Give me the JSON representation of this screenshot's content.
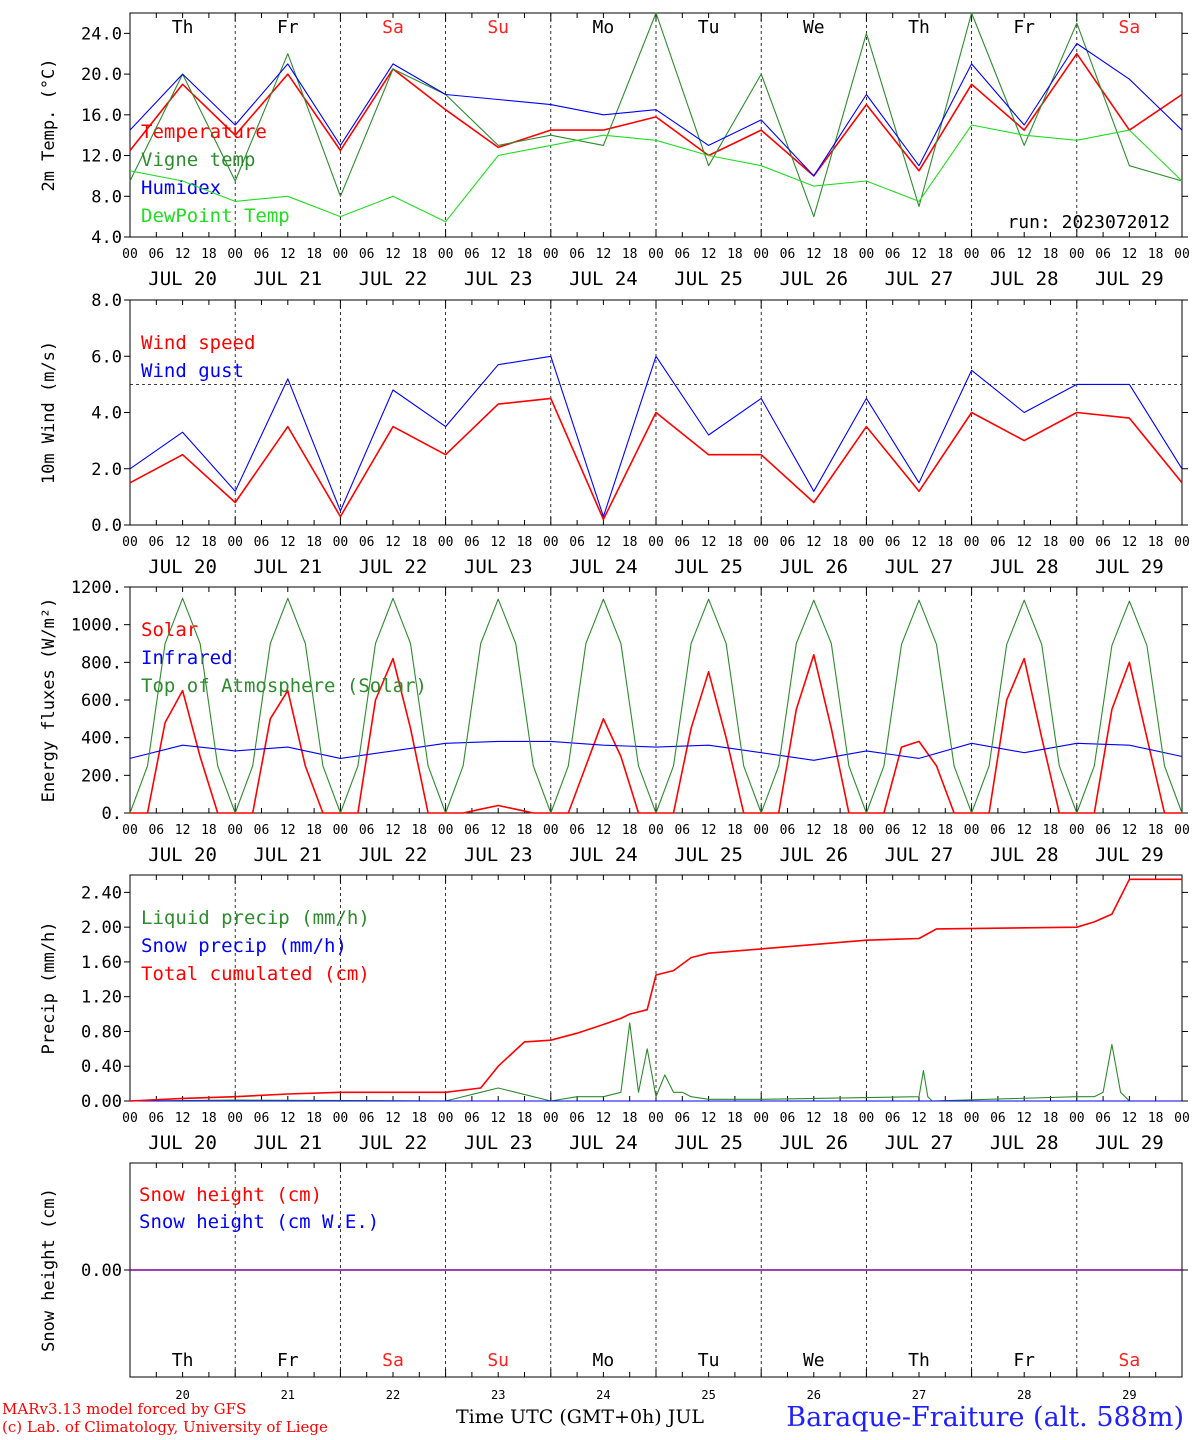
{
  "days": [
    "Th",
    "Fr",
    "Sa",
    "Su",
    "Mo",
    "Tu",
    "We",
    "Th",
    "Fr",
    "Sa"
  ],
  "weekend_color": "#ff2020",
  "date_labels": [
    "JUL 20",
    "JUL 21",
    "JUL 22",
    "JUL 23",
    "JUL 24",
    "JUL 25",
    "JUL 26",
    "JUL 27",
    "JUL 28",
    "JUL 29"
  ],
  "day_numbers": [
    "20",
    "21",
    "22",
    "23",
    "24",
    "25",
    "26",
    "27",
    "28",
    "29"
  ],
  "hour_labels": [
    "00",
    "06",
    "12",
    "18"
  ],
  "run_label": "run: 2023072012",
  "footer": {
    "model": "MARv3.13 model forced by GFS",
    "credit": "(c) Lab. of Climatology, University of Liege",
    "time_axis": "Time UTC (GMT+0h) JUL",
    "station": "Baraque-Fraiture (alt. 588m)"
  },
  "chart_data": [
    {
      "type": "line",
      "ylabel": "2m Temp. (°C)",
      "ylim": [
        4,
        26
      ],
      "yticks": [
        "4.0",
        "8.0",
        "12.0",
        "16.0",
        "20.0",
        "24.0"
      ],
      "yticks_values": [
        4,
        8,
        12,
        16,
        20,
        24
      ],
      "xlim_hours": [
        0,
        240
      ],
      "series": [
        {
          "name": "Temperature",
          "color": "#ff0000",
          "x": [
            0,
            12,
            24,
            36,
            48,
            60,
            72,
            84,
            96,
            108,
            120,
            132,
            144,
            156,
            168,
            180,
            192,
            204,
            216,
            228,
            240
          ],
          "values": [
            12.5,
            19,
            14,
            20,
            12.5,
            20.5,
            16.5,
            12.8,
            14.5,
            14.5,
            15.8,
            12,
            14.5,
            10,
            17,
            10.5,
            19,
            14.5,
            22,
            14.5,
            18
          ]
        },
        {
          "name": "Vigne temp",
          "color": "#2e8b2e",
          "x": [
            0,
            12,
            24,
            36,
            48,
            60,
            72,
            84,
            96,
            108,
            120,
            132,
            144,
            156,
            168,
            180,
            192,
            204,
            216,
            228,
            240
          ],
          "values": [
            9.5,
            20,
            9.5,
            22,
            8,
            20.5,
            18,
            13,
            14,
            13,
            26,
            11,
            20,
            6,
            24,
            7,
            26,
            13,
            25,
            11,
            9.5
          ]
        },
        {
          "name": "Humidex",
          "color": "#0000ff",
          "x": [
            0,
            12,
            24,
            36,
            48,
            60,
            72,
            84,
            96,
            108,
            120,
            132,
            144,
            156,
            168,
            180,
            192,
            204,
            216,
            228,
            240
          ],
          "values": [
            14.5,
            20,
            15,
            21,
            13,
            21,
            18,
            17.5,
            17,
            16,
            16.5,
            13,
            15.5,
            10,
            18,
            11,
            21,
            15,
            23,
            19.5,
            14.5
          ]
        },
        {
          "name": "DewPoint Temp",
          "color": "#22dd22",
          "x": [
            0,
            12,
            24,
            36,
            48,
            60,
            72,
            84,
            96,
            108,
            120,
            132,
            144,
            156,
            168,
            180,
            192,
            204,
            216,
            228,
            240
          ],
          "values": [
            10.5,
            9.5,
            7.5,
            8,
            6,
            8,
            5.5,
            12,
            13,
            14,
            13.5,
            12,
            11,
            9,
            9.5,
            7.5,
            15,
            14,
            13.5,
            14.5,
            9.5
          ]
        }
      ],
      "reference_line": null
    },
    {
      "type": "line",
      "ylabel": "10m Wind (m/s)",
      "ylim": [
        0,
        8
      ],
      "yticks": [
        "0.0",
        "2.0",
        "4.0",
        "6.0",
        "8.0"
      ],
      "yticks_values": [
        0,
        2,
        4,
        6,
        8
      ],
      "xlim_hours": [
        0,
        240
      ],
      "reference_line": 5,
      "series": [
        {
          "name": "Wind speed",
          "color": "#ff0000",
          "x": [
            0,
            12,
            24,
            36,
            48,
            60,
            72,
            84,
            96,
            108,
            120,
            132,
            144,
            156,
            168,
            180,
            192,
            204,
            216,
            228,
            240
          ],
          "values": [
            1.5,
            2.5,
            0.8,
            3.5,
            0.3,
            3.5,
            2.5,
            4.3,
            4.5,
            0.2,
            4,
            2.5,
            2.5,
            0.8,
            3.5,
            1.2,
            4,
            3,
            4,
            3.8,
            1.5
          ]
        },
        {
          "name": "Wind gust",
          "color": "#0000ff",
          "x": [
            0,
            12,
            24,
            36,
            48,
            60,
            72,
            84,
            96,
            108,
            120,
            132,
            144,
            156,
            168,
            180,
            192,
            204,
            216,
            228,
            240
          ],
          "values": [
            2,
            3.3,
            1.2,
            5.2,
            0.5,
            4.8,
            3.5,
            5.7,
            6,
            0.3,
            6,
            3.2,
            4.5,
            1.2,
            4.5,
            1.5,
            5.5,
            4,
            5,
            5,
            2
          ]
        }
      ]
    },
    {
      "type": "line",
      "ylabel": "Energy fluxes (W/m²)",
      "ylim": [
        0,
        1200
      ],
      "yticks": [
        "0.",
        "200.",
        "400.",
        "600.",
        "800.",
        "1000.",
        "1200."
      ],
      "yticks_values": [
        0,
        200,
        400,
        600,
        800,
        1000,
        1200
      ],
      "xlim_hours": [
        0,
        240
      ],
      "reference_line": null,
      "series": [
        {
          "name": "Solar",
          "color": "#ff0000",
          "x": [
            0,
            4,
            8,
            12,
            16,
            20,
            24,
            28,
            32,
            36,
            40,
            44,
            48,
            52,
            56,
            60,
            64,
            68,
            72,
            76,
            80,
            84,
            88,
            92,
            96,
            100,
            104,
            108,
            112,
            116,
            120,
            124,
            128,
            132,
            136,
            140,
            144,
            148,
            152,
            156,
            160,
            164,
            168,
            172,
            176,
            180,
            184,
            188,
            192,
            196,
            200,
            204,
            208,
            212,
            216,
            220,
            224,
            228,
            232,
            236,
            240
          ],
          "values": [
            0,
            0,
            480,
            650,
            300,
            0,
            0,
            0,
            500,
            650,
            250,
            0,
            0,
            0,
            600,
            820,
            450,
            0,
            0,
            0,
            20,
            40,
            20,
            0,
            0,
            0,
            250,
            500,
            300,
            0,
            0,
            0,
            450,
            750,
            400,
            0,
            0,
            0,
            550,
            840,
            450,
            0,
            0,
            0,
            350,
            380,
            250,
            0,
            0,
            0,
            600,
            820,
            400,
            0,
            0,
            0,
            550,
            800,
            400,
            0,
            0
          ]
        },
        {
          "name": "Infrared",
          "color": "#0000ff",
          "x": [
            0,
            12,
            24,
            36,
            48,
            60,
            72,
            84,
            96,
            108,
            120,
            132,
            144,
            156,
            168,
            180,
            192,
            204,
            216,
            228,
            240
          ],
          "values": [
            290,
            360,
            330,
            350,
            290,
            330,
            370,
            380,
            380,
            360,
            350,
            360,
            320,
            280,
            330,
            290,
            370,
            320,
            370,
            360,
            300
          ]
        },
        {
          "name": "Top of Atmosphere (Solar)",
          "color": "#2e8b2e",
          "x": [
            0,
            4,
            8,
            12,
            16,
            20,
            24,
            28,
            32,
            36,
            40,
            44,
            48,
            52,
            56,
            60,
            64,
            68,
            72,
            76,
            80,
            84,
            88,
            92,
            96,
            100,
            104,
            108,
            112,
            116,
            120,
            124,
            128,
            132,
            136,
            140,
            144,
            148,
            152,
            156,
            160,
            164,
            168,
            172,
            176,
            180,
            184,
            188,
            192,
            196,
            200,
            204,
            208,
            212,
            216,
            220,
            224,
            228,
            232,
            236,
            240
          ],
          "values": [
            0,
            250,
            900,
            1140,
            900,
            250,
            0,
            250,
            900,
            1140,
            900,
            250,
            0,
            250,
            900,
            1140,
            900,
            250,
            0,
            250,
            900,
            1135,
            900,
            250,
            0,
            250,
            900,
            1135,
            900,
            250,
            0,
            250,
            900,
            1135,
            900,
            250,
            0,
            250,
            900,
            1130,
            900,
            250,
            0,
            250,
            895,
            1130,
            895,
            250,
            0,
            250,
            895,
            1130,
            895,
            250,
            0,
            250,
            890,
            1125,
            890,
            250,
            0
          ]
        }
      ]
    },
    {
      "type": "line",
      "ylabel": "Precip (mm/h)",
      "ylim": [
        0,
        2.6
      ],
      "yticks": [
        "0.00",
        "0.40",
        "0.80",
        "1.20",
        "1.60",
        "2.00",
        "2.40"
      ],
      "yticks_values": [
        0,
        0.4,
        0.8,
        1.2,
        1.6,
        2.0,
        2.4
      ],
      "xlim_hours": [
        0,
        240
      ],
      "reference_line": null,
      "series": [
        {
          "name": "Liquid precip (mm/h)",
          "color": "#2e8b2e",
          "x": [
            0,
            24,
            72,
            80,
            84,
            88,
            96,
            102,
            108,
            112,
            114,
            116,
            118,
            120,
            122,
            124,
            126,
            128,
            132,
            144,
            180,
            181,
            182,
            183,
            216,
            220,
            222,
            224,
            226,
            228,
            240
          ],
          "values": [
            0,
            0.01,
            0,
            0.1,
            0.15,
            0.1,
            0,
            0.05,
            0.05,
            0.1,
            0.9,
            0.1,
            0.6,
            0.05,
            0.3,
            0.1,
            0.1,
            0.05,
            0.02,
            0.02,
            0.05,
            0.35,
            0.05,
            0,
            0.05,
            0.05,
            0.1,
            0.65,
            0.1,
            0,
            0
          ]
        },
        {
          "name": "Snow precip (mm/h)",
          "color": "#0000ff",
          "x": [
            0,
            240
          ],
          "values": [
            0,
            0
          ]
        },
        {
          "name": "Total cumulated (cm)",
          "color": "#ff0000",
          "x": [
            0,
            12,
            24,
            36,
            48,
            72,
            80,
            84,
            90,
            96,
            102,
            108,
            112,
            114,
            118,
            120,
            124,
            128,
            132,
            144,
            168,
            180,
            184,
            216,
            220,
            224,
            228,
            240
          ],
          "values": [
            0,
            0.03,
            0.05,
            0.08,
            0.1,
            0.1,
            0.15,
            0.4,
            0.68,
            0.7,
            0.78,
            0.88,
            0.95,
            1.0,
            1.05,
            1.45,
            1.5,
            1.65,
            1.7,
            1.75,
            1.85,
            1.87,
            1.98,
            2.0,
            2.06,
            2.15,
            2.55,
            2.55
          ]
        }
      ]
    },
    {
      "type": "line",
      "ylabel": "Snow height (cm)",
      "ytick": "0.00",
      "xlim_hours": [
        0,
        240
      ],
      "series": [
        {
          "name": "Snow height (cm)",
          "color": "#ff0000",
          "x": [
            0,
            240
          ],
          "values": [
            0,
            0
          ]
        },
        {
          "name": "Snow height (cm W.E.)",
          "color": "#0000ff",
          "x": [
            0,
            240
          ],
          "values": [
            0,
            0
          ]
        }
      ]
    }
  ]
}
